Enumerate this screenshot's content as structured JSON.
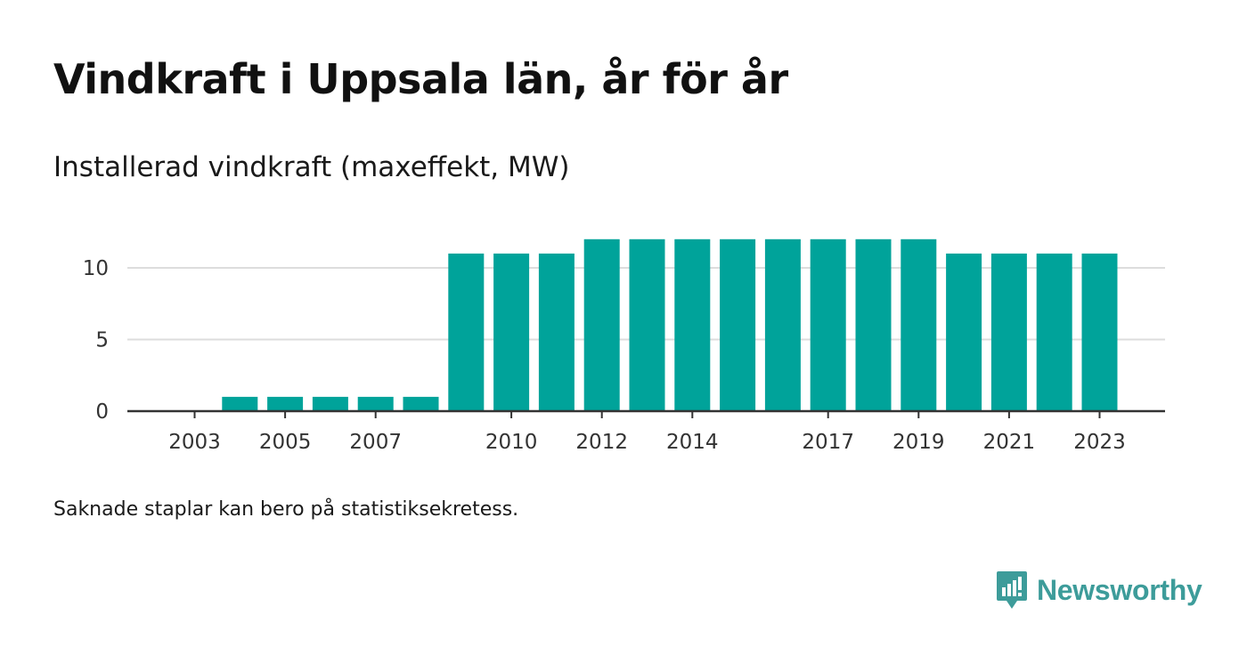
{
  "header": {
    "title": "Vindkraft i Uppsala län, år för år",
    "subtitle": "Installerad vindkraft (maxeffekt, MW)"
  },
  "footnote": "Saknade staplar kan bero på statistiksekretess.",
  "brand": {
    "name": "Newsworthy",
    "icon": "newsworthy-logo-icon",
    "color": "#3d9c9a"
  },
  "colors": {
    "bar": "#00a39a",
    "grid": "#dddddd",
    "axis": "#333333"
  },
  "chart_data": {
    "type": "bar",
    "title": "Installerad vindkraft (maxeffekt, MW)",
    "xlabel": "",
    "ylabel": "",
    "categories": [
      2003,
      2004,
      2005,
      2006,
      2007,
      2008,
      2009,
      2010,
      2011,
      2012,
      2013,
      2014,
      2015,
      2016,
      2017,
      2018,
      2019,
      2020,
      2021,
      2022,
      2023
    ],
    "values": [
      0,
      1,
      1,
      1,
      1,
      1,
      11,
      11,
      11,
      12,
      12,
      12,
      12,
      12,
      12,
      12,
      12,
      11,
      11,
      11,
      11
    ],
    "x_tick_labels": [
      "2003",
      "2005",
      "2007",
      "2010",
      "2012",
      "2014",
      "2017",
      "2019",
      "2021",
      "2023"
    ],
    "y_ticks": [
      0,
      5,
      10
    ],
    "ylim": [
      0,
      12
    ],
    "grid": true,
    "legend": "none"
  }
}
